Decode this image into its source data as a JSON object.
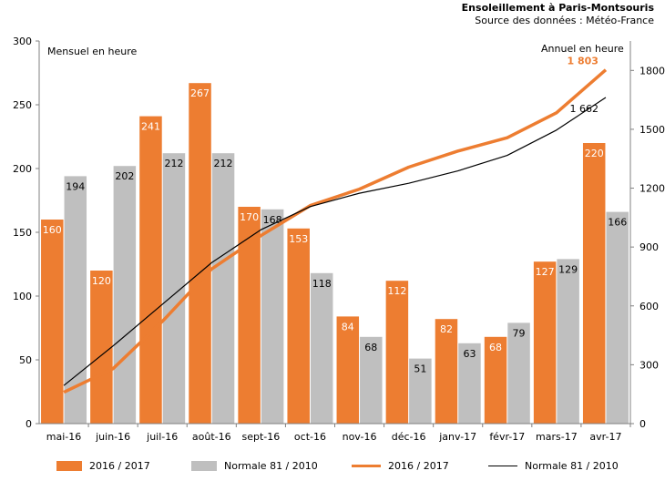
{
  "header": {
    "title": "Ensoleillement à Paris-Montsouris",
    "source": "Source des données : Météo-France"
  },
  "chart_data": {
    "type": "bar",
    "categories": [
      "mai-16",
      "juin-16",
      "juil-16",
      "août-16",
      "sept-16",
      "oct-16",
      "nov-16",
      "déc-16",
      "janv-17",
      "févr-17",
      "mars-17",
      "avr-17"
    ],
    "ylabel": "Mensuel en heure",
    "ylim": [
      0,
      300
    ],
    "yticks": [
      0,
      50,
      100,
      150,
      200,
      250,
      300
    ],
    "y2label": "Annuel en heure",
    "y2lim": [
      0,
      1950
    ],
    "y2ticks": [
      0,
      300,
      600,
      900,
      1200,
      1500,
      1800
    ],
    "series": [
      {
        "name": "2016 / 2017",
        "type": "bar",
        "axis": "left",
        "color": "#ED7D31",
        "values": [
          160,
          120,
          241,
          267,
          170,
          153,
          84,
          112,
          82,
          68,
          127,
          220
        ]
      },
      {
        "name": "Normale 81 / 2010",
        "type": "bar",
        "axis": "left",
        "color": "#BFBFBF",
        "values": [
          194,
          202,
          212,
          212,
          168,
          118,
          68,
          51,
          63,
          79,
          129,
          166
        ]
      },
      {
        "name": "2016 / 2017",
        "type": "line",
        "axis": "right",
        "color": "#ED7D31",
        "values": [
          160,
          280,
          521,
          788,
          958,
          1111,
          1195,
          1307,
          1389,
          1457,
          1584,
          1803
        ]
      },
      {
        "name": "Normale 81 / 2010",
        "type": "line",
        "axis": "right",
        "color": "#000000",
        "values": [
          194,
          396,
          608,
          820,
          988,
          1106,
          1174,
          1225,
          1288,
          1367,
          1496,
          1662
        ]
      }
    ],
    "annotations": [
      {
        "series": 2,
        "index": 11,
        "text": "1 803"
      },
      {
        "series": 3,
        "index": 11,
        "text": "1 662"
      }
    ],
    "grid": false,
    "legend_position": "bottom"
  }
}
